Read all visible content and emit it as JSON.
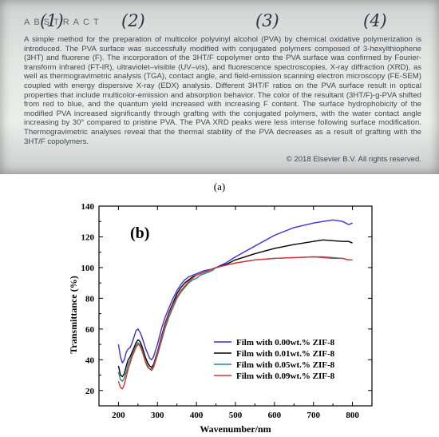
{
  "panel_a": {
    "heading": "ABSTRACT",
    "hand_labels": [
      "(1)",
      "(2)",
      "(3)",
      "(4)"
    ],
    "body": "A simple method for the preparation of multicolor polyvinyl alcohol (PVA) by chemical oxidative polymerization is introduced. The PVA surface was successfully modified with conjugated polymers composed of 3-hexylthiophene (3HT) and fluorene (F). The incorporation of the 3HT/F copolymer onto the PVA surface was confirmed by Fourier-transform infrared (FT-IR), ultraviolet–visible (UV–vis), and fluorescence spectroscopies, X-ray diffraction (XRD), as well as thermogravimetric analysis (TGA), contact angle, and field-emission scanning electron microscopy (FE-SEM) coupled with energy dispersive X-ray (EDX) analysis. Different 3HT/F ratios on the PVA surface result in optical properties that include multicolor-emission and absorption behavior. The color of the resultant (3HT/F)-g-PVA shifted from red to blue, and the quantum yield increased with increasing F content. The surface hydrophobicity of the modified PVA increased significantly through grafting with the conjugated polymers, with the water contact angle increasing by 30° compared to pristine PVA. The PVA XRD peaks were less intense following surface modification. Thermogravimetric analyses reveal that the thermal stability of the PVA decreases as a result of grafting with the 3HT/F copolymers.",
    "copyright": "© 2018 Elsevier B.V. All rights reserved.",
    "caption": "(a)"
  },
  "chart_data": {
    "type": "line",
    "panel_label": "(b)",
    "xlabel": "Wavenumber/nm",
    "ylabel": "Transmittance (%)",
    "xlim": [
      150,
      850
    ],
    "ylim": [
      10,
      140
    ],
    "xticks": [
      200,
      300,
      400,
      500,
      600,
      700,
      800
    ],
    "yticks": [
      20,
      40,
      60,
      80,
      100,
      120,
      140
    ],
    "grid": false,
    "legend_position": "lower-right",
    "series": [
      {
        "name": "Film with 0.00wt.% ZIF-8",
        "color": "#3b2fd6",
        "x": [
          200,
          205,
          210,
          215,
          220,
          225,
          230,
          235,
          240,
          245,
          250,
          255,
          260,
          265,
          270,
          275,
          280,
          285,
          290,
          300,
          310,
          320,
          330,
          340,
          350,
          360,
          370,
          380,
          390,
          400,
          410,
          420,
          430,
          440,
          450,
          475,
          500,
          550,
          600,
          650,
          700,
          725,
          750,
          775,
          790,
          800
        ],
        "y": [
          50,
          42,
          38,
          40,
          45,
          47,
          48,
          51,
          55,
          59,
          60,
          58,
          55,
          51,
          47,
          44,
          41,
          40,
          42,
          50,
          60,
          68,
          74,
          80,
          85,
          89,
          92,
          94,
          95,
          96,
          97,
          98,
          98.5,
          99,
          100,
          103,
          107,
          114,
          121,
          126,
          129,
          130,
          131,
          130,
          128,
          129
        ]
      },
      {
        "name": "Film with 0.01wt.% ZIF-8",
        "color": "#000000",
        "x": [
          200,
          205,
          210,
          215,
          220,
          225,
          230,
          235,
          240,
          245,
          250,
          255,
          260,
          265,
          270,
          275,
          280,
          285,
          290,
          300,
          310,
          320,
          330,
          340,
          350,
          360,
          370,
          380,
          390,
          400,
          410,
          420,
          430,
          440,
          450,
          475,
          500,
          550,
          600,
          650,
          700,
          725,
          750,
          775,
          790,
          800
        ],
        "y": [
          36,
          30,
          29,
          31,
          36,
          40,
          42,
          45,
          48,
          51,
          53,
          52,
          49,
          45,
          41,
          38,
          36,
          35,
          37,
          45,
          55,
          64,
          71,
          77,
          83,
          87,
          90,
          92,
          94,
          95,
          96,
          97,
          98,
          99,
          100,
          102,
          105,
          109,
          112.5,
          115,
          117,
          118,
          117.5,
          117,
          117,
          116
        ]
      },
      {
        "name": "Film with 0.05wt.% ZIF-8",
        "color": "#1f8a8a",
        "x": [
          200,
          205,
          210,
          215,
          220,
          225,
          230,
          235,
          240,
          245,
          250,
          255,
          260,
          265,
          270,
          275,
          280,
          285,
          290,
          300,
          310,
          320,
          330,
          340,
          350,
          360,
          370,
          380,
          390,
          400,
          410,
          420,
          430,
          440,
          450,
          475,
          500,
          550,
          600,
          650,
          700,
          725,
          750,
          775,
          790,
          800
        ],
        "y": [
          32,
          27,
          26,
          28,
          32,
          37,
          40,
          43,
          46,
          49,
          51,
          50,
          47,
          43,
          39,
          36,
          34,
          33,
          35,
          43,
          52,
          61,
          68,
          74,
          80,
          84,
          87,
          90,
          92,
          93,
          95,
          96,
          97,
          98,
          100,
          101.5,
          103,
          105,
          106,
          106.5,
          107,
          107,
          106.5,
          106,
          105,
          105
        ]
      },
      {
        "name": "Film with 0.09wt.% ZIF-8",
        "color": "#e03030",
        "x": [
          200,
          205,
          210,
          215,
          220,
          225,
          230,
          235,
          240,
          245,
          250,
          255,
          260,
          265,
          270,
          275,
          280,
          285,
          290,
          300,
          310,
          320,
          330,
          340,
          350,
          360,
          370,
          380,
          390,
          400,
          410,
          420,
          430,
          440,
          450,
          475,
          500,
          550,
          600,
          650,
          700,
          725,
          750,
          775,
          790,
          800
        ],
        "y": [
          26,
          22,
          21,
          24,
          29,
          34,
          38,
          42,
          45,
          48,
          50,
          49,
          46,
          42,
          38,
          35,
          34,
          34,
          36,
          44,
          54,
          63,
          70,
          76,
          81,
          85,
          88,
          91,
          93,
          95,
          96,
          97,
          98,
          99,
          100,
          101.5,
          103,
          105,
          106,
          106.5,
          107,
          106.5,
          106,
          106,
          105,
          105
        ]
      }
    ]
  }
}
